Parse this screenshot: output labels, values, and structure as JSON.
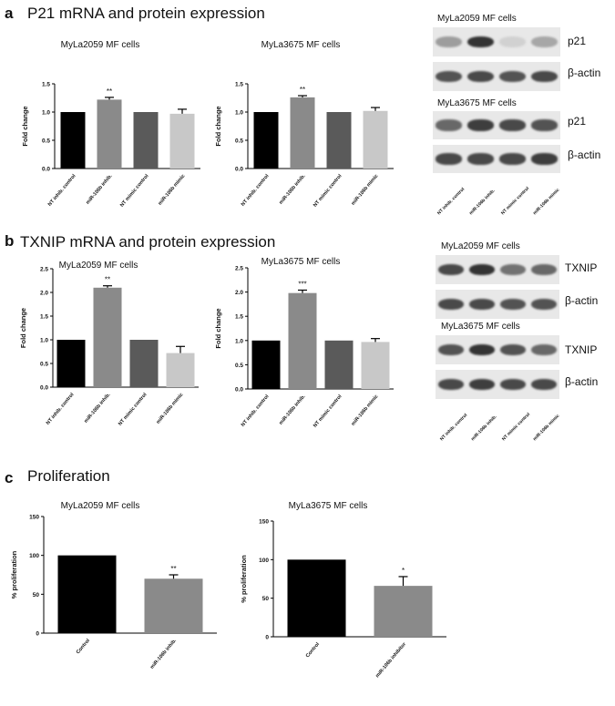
{
  "panels": [
    {
      "letter": "a",
      "title": "P21 mRNA and protein expression"
    },
    {
      "letter": "b",
      "title": "TXNIP mRNA and protein expression"
    },
    {
      "letter": "c",
      "title": "Proliferation"
    }
  ],
  "chart_data": [
    {
      "type": "bar",
      "title": "MyLa2059 MF cells",
      "ylabel": "Fold change",
      "ylim": [
        0,
        1.5
      ],
      "yticks": [
        "0.0",
        "0.5",
        "1.0",
        "1.5"
      ],
      "categories": [
        "NT inhib. control",
        "miR-106b inhib.",
        "NT mimic control",
        "miR-106b mimic"
      ],
      "values": [
        1.0,
        1.22,
        1.0,
        0.97
      ],
      "errors": [
        0,
        0.04,
        0,
        0.08
      ],
      "sig": [
        "",
        "**",
        "",
        ""
      ],
      "colors": [
        "#000000",
        "#8a8a8a",
        "#5a5a5a",
        "#c8c8c8"
      ]
    },
    {
      "type": "bar",
      "title": "MyLa3675 MF cells",
      "ylabel": "Fold change",
      "ylim": [
        0,
        1.5
      ],
      "yticks": [
        "0.0",
        "0.5",
        "1.0",
        "1.5"
      ],
      "categories": [
        "NT inhib. control",
        "miR-106b inhib.",
        "NT mimic control",
        "miR-106b mimic"
      ],
      "values": [
        1.0,
        1.26,
        1.0,
        1.02
      ],
      "errors": [
        0,
        0.03,
        0,
        0.06
      ],
      "sig": [
        "",
        "**",
        "",
        ""
      ],
      "colors": [
        "#000000",
        "#8a8a8a",
        "#5a5a5a",
        "#c8c8c8"
      ]
    },
    {
      "type": "bar",
      "title": "MyLa2059 MF cells",
      "ylabel": "Fold change",
      "ylim": [
        0,
        2.5
      ],
      "yticks": [
        "0.0",
        "0.5",
        "1.0",
        "1.5",
        "2.0",
        "2.5"
      ],
      "categories": [
        "NT inhib. control",
        "miR-106b inhib.",
        "NT mimic control",
        "miR-106b mimic"
      ],
      "values": [
        1.0,
        2.1,
        1.0,
        0.72
      ],
      "errors": [
        0,
        0.04,
        0,
        0.14
      ],
      "sig": [
        "",
        "**",
        "",
        ""
      ],
      "colors": [
        "#000000",
        "#8a8a8a",
        "#5a5a5a",
        "#c8c8c8"
      ]
    },
    {
      "type": "bar",
      "title": "MyLa3675 MF cells",
      "ylabel": "Fold change",
      "ylim": [
        0,
        2.5
      ],
      "yticks": [
        "0.0",
        "0.5",
        "1.0",
        "1.5",
        "2.0",
        "2.5"
      ],
      "categories": [
        "NT inhib. control",
        "miR-106b inhib.",
        "NT mimic control",
        "miR-106b mimic"
      ],
      "values": [
        1.0,
        1.98,
        1.0,
        0.97
      ],
      "errors": [
        0,
        0.06,
        0,
        0.07
      ],
      "sig": [
        "",
        "***",
        "",
        ""
      ],
      "colors": [
        "#000000",
        "#8a8a8a",
        "#5a5a5a",
        "#c8c8c8"
      ]
    },
    {
      "type": "bar",
      "title": "MyLa2059 MF cells",
      "ylabel": "% proliferation",
      "ylim": [
        0,
        150
      ],
      "yticks": [
        "0",
        "50",
        "100",
        "150"
      ],
      "categories": [
        "Control",
        "miR-106b inhib."
      ],
      "values": [
        100,
        70
      ],
      "errors": [
        0,
        5
      ],
      "sig": [
        "",
        "**"
      ],
      "colors": [
        "#000000",
        "#8a8a8a"
      ]
    },
    {
      "type": "bar",
      "title": "MyLa3675 MF cells",
      "ylabel": "% proliferation",
      "ylim": [
        0,
        150
      ],
      "yticks": [
        "0",
        "50",
        "100",
        "150"
      ],
      "categories": [
        "Control",
        "miR-106b inhibitor"
      ],
      "values": [
        100,
        66
      ],
      "errors": [
        0,
        12
      ],
      "sig": [
        "",
        "*"
      ],
      "colors": [
        "#000000",
        "#8a8a8a"
      ]
    }
  ],
  "blots": [
    {
      "title": "MyLa2059 MF cells",
      "labels": [
        "p21",
        "β-actin"
      ]
    },
    {
      "title": "MyLa3675 MF cells",
      "labels": [
        "p21",
        "β-actin"
      ]
    },
    {
      "title": "MyLa2059 MF cells",
      "labels": [
        "TXNIP",
        "β-actin"
      ]
    },
    {
      "title": "MyLa3675 MF cells",
      "labels": [
        "TXNIP",
        "β-actin"
      ]
    }
  ],
  "blot_lanes": [
    "NT inhib. control",
    "miR-106b inhib.",
    "NT mimic control",
    "miR-106b mimic"
  ],
  "band_intensity": [
    [
      [
        0.35,
        0.85,
        0.1,
        0.3
      ],
      [
        0.7,
        0.75,
        0.7,
        0.75
      ]
    ],
    [
      [
        0.6,
        0.8,
        0.75,
        0.7
      ],
      [
        0.75,
        0.75,
        0.75,
        0.8
      ]
    ],
    [
      [
        0.75,
        0.85,
        0.55,
        0.6
      ],
      [
        0.75,
        0.75,
        0.7,
        0.7
      ]
    ],
    [
      [
        0.7,
        0.85,
        0.7,
        0.6
      ],
      [
        0.75,
        0.8,
        0.75,
        0.75
      ]
    ]
  ]
}
